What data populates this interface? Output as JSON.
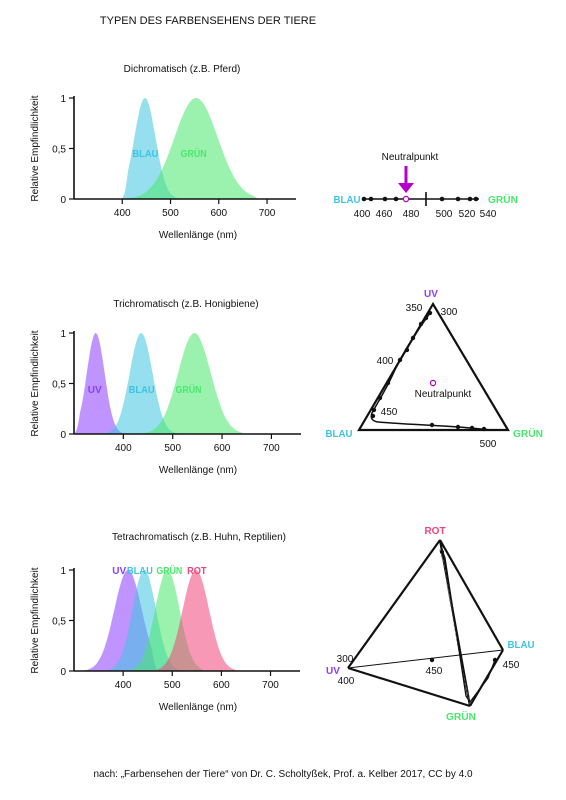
{
  "title": "TYPEN DES FARBENSEHENS DER TIERE",
  "footer": "nach: „Farbensehen der Tiere“ von Dr. C. Scholtyßek, Prof. a. Kelber 2017, CC by 4.0",
  "colors": {
    "uv": "#8a3dff",
    "blau": "#3ec4e0",
    "gruen": "#49e86c",
    "rot": "#f0457a",
    "neutral": "#b400c8"
  },
  "panels": [
    {
      "heading": "Dichromatisch (z.B. Pferd)",
      "ylabel": "Relative Empfindlichkeit",
      "xlabel": "Wellenlänge (nm)",
      "xlim": [
        300,
        760
      ],
      "ylim": [
        0,
        1
      ],
      "yticks": [
        "1",
        "0,5",
        "0"
      ],
      "xticks": [
        "400",
        "500",
        "600",
        "700"
      ],
      "curves": [
        {
          "label": "BLAU",
          "peak": 447,
          "width": 22,
          "start": 400,
          "end": 545
        },
        {
          "label": "GRÜN",
          "peak": 553,
          "width": 45,
          "start": 400,
          "end": 685
        }
      ],
      "curve_labels": [
        {
          "text": "BLAU",
          "at_nm": 448
        },
        {
          "text": "GRÜN",
          "at_nm": 548
        }
      ],
      "space": {
        "type": "line",
        "left_label": "BLAU",
        "right_label": "GRÜN",
        "neutral_label": "Neutralpunkt",
        "neutral_nm": 480,
        "ticks": [
          "400",
          "460",
          "480",
          "500",
          "520",
          "540"
        ]
      }
    },
    {
      "heading": "Trichromatisch (z.B. Honigbiene)",
      "ylabel": "Relative Empfindlichkeit",
      "xlabel": "Wellenlänge (nm)",
      "xlim": [
        300,
        760
      ],
      "ylim": [
        0,
        1
      ],
      "yticks": [
        "1",
        "0,5",
        "0"
      ],
      "xticks": [
        "400",
        "500",
        "600",
        "700"
      ],
      "curves": [
        {
          "label": "UV",
          "peak": 344,
          "width": 18,
          "start": 300,
          "end": 440
        },
        {
          "label": "BLAU",
          "peak": 436,
          "width": 23,
          "start": 340,
          "end": 540
        },
        {
          "label": "GRÜN",
          "peak": 544,
          "width": 33,
          "start": 390,
          "end": 650
        }
      ],
      "curve_labels": [
        {
          "text": "UV",
          "at_nm": 342
        },
        {
          "text": "BLAU",
          "at_nm": 437
        },
        {
          "text": "GRÜN",
          "at_nm": 532
        }
      ],
      "space": {
        "type": "triangle",
        "top_label": "UV",
        "left_label": "BLAU",
        "right_label": "GRÜN",
        "neutral_label": "Neutralpunkt",
        "ticks": [
          "350",
          "300",
          "400",
          "450",
          "500"
        ]
      }
    },
    {
      "heading": "Tetrachromatisch (z.B. Huhn, Reptilien)",
      "ylabel": "Relative Empfindlichkeit",
      "xlabel": "Wellenlänge (nm)",
      "xlim": [
        300,
        760
      ],
      "ylim": [
        0,
        1
      ],
      "yticks": [
        "1",
        "0,5",
        "0"
      ],
      "xticks": [
        "400",
        "500",
        "600",
        "700"
      ],
      "curves": [
        {
          "label": "UV",
          "peak": 410,
          "width": 28,
          "start": 300,
          "end": 470
        },
        {
          "label": "BLAU",
          "peak": 443,
          "width": 24,
          "start": 360,
          "end": 520
        },
        {
          "label": "GRÜN",
          "peak": 490,
          "width": 25,
          "start": 410,
          "end": 570
        },
        {
          "label": "ROT",
          "peak": 548,
          "width": 27,
          "start": 460,
          "end": 640
        }
      ],
      "curve_labels": [
        {
          "text": "UV",
          "at_nm": 392
        },
        {
          "text": "BLAU",
          "at_nm": 434
        },
        {
          "text": "GRÜN",
          "at_nm": 494
        },
        {
          "text": "ROT",
          "at_nm": 550
        }
      ],
      "space": {
        "type": "tetrahedron",
        "top_label": "ROT",
        "left_label": "UV",
        "right_label": "BLAU",
        "bottom_label": "GRÜN",
        "ticks": [
          "300",
          "400",
          "450",
          "450"
        ]
      }
    }
  ]
}
